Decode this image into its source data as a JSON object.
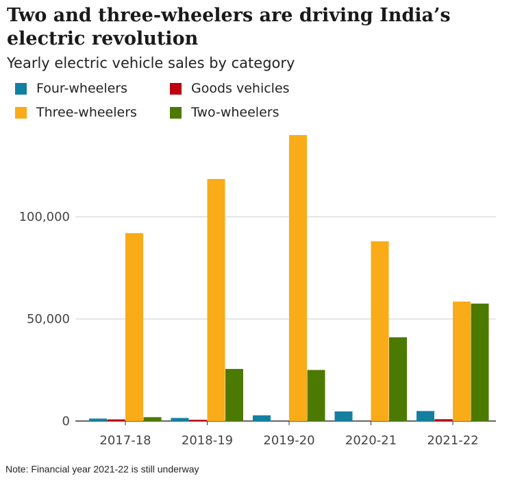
{
  "title": "Two and three-wheelers are driving India’s electric revolution",
  "subtitle": "Yearly electric vehicle sales by category",
  "note": "Note: Financial year 2021-22 is still underway",
  "chart_data": {
    "type": "bar",
    "categories": [
      "2017-18",
      "2018-19",
      "2019-20",
      "2020-21",
      "2021-22"
    ],
    "series": [
      {
        "name": "Four-wheelers",
        "color": "#1380A1",
        "values": [
          1200,
          1500,
          2800,
          4700,
          4900
        ]
      },
      {
        "name": "Goods vehicles",
        "color": "#BB0011",
        "values": [
          800,
          600,
          0,
          0,
          900
        ]
      },
      {
        "name": "Three-wheelers",
        "color": "#FAAB18",
        "values": [
          92000,
          118500,
          140000,
          88000,
          58500
        ]
      },
      {
        "name": "Two-wheelers",
        "color": "#4C7A00",
        "values": [
          1900,
          25500,
          25000,
          41000,
          57500
        ]
      }
    ],
    "yticks": [
      0,
      50000,
      100000
    ],
    "ytick_labels": [
      "0",
      "50,000",
      "100,000"
    ],
    "ylim": [
      0,
      140000
    ],
    "grid": true,
    "legend_position": "top-left"
  }
}
